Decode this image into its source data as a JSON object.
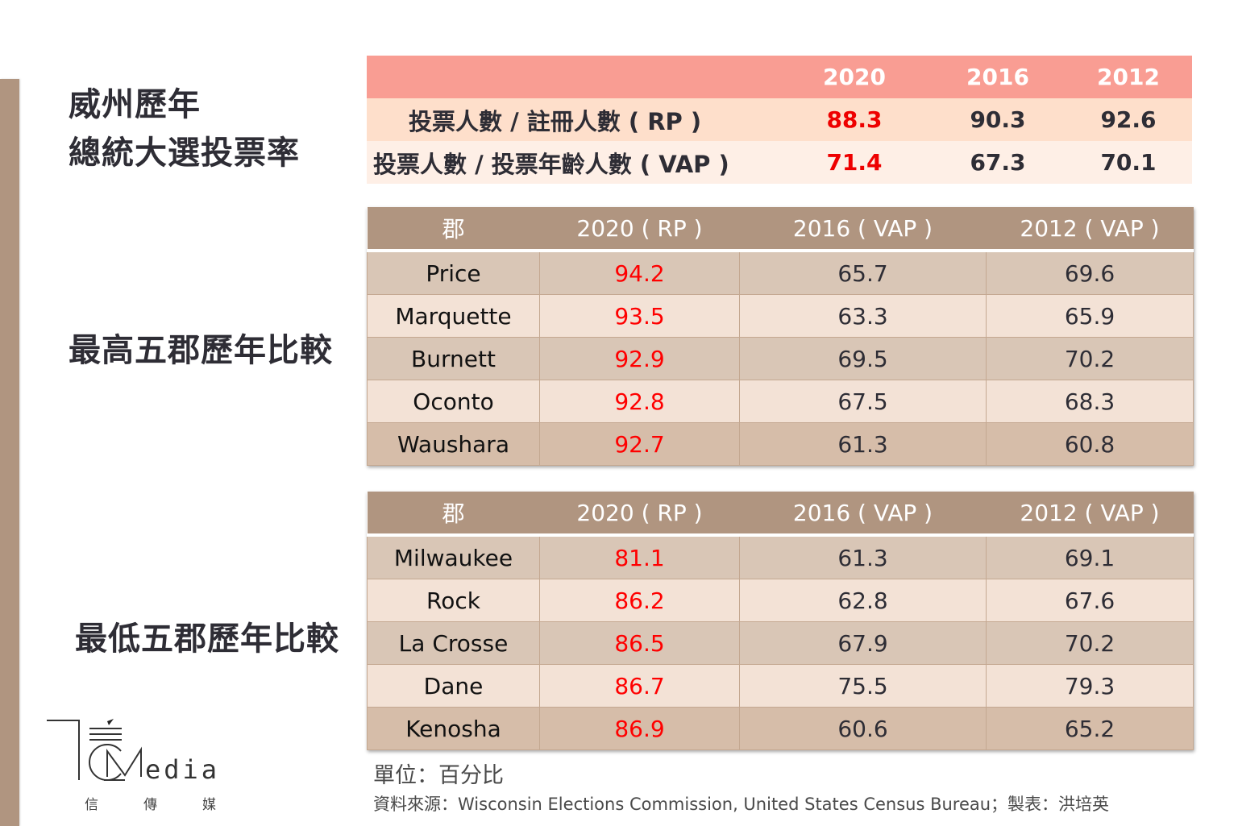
{
  "titles": {
    "main_line1": "威州歷年",
    "main_line2": "總統大選投票率",
    "top5": "最高五郡歷年比較",
    "low5": "最低五郡歷年比較"
  },
  "summary_table": {
    "headers": [
      "",
      "2020",
      "2016",
      "2012"
    ],
    "rows": [
      {
        "label": "投票人數 / 註冊人數 ( RP )",
        "values": [
          "88.3",
          "90.3",
          "92.6"
        ]
      },
      {
        "label": "投票人數 / 投票年齡人數 ( VAP )",
        "values": [
          "71.4",
          "67.3",
          "70.1"
        ]
      }
    ]
  },
  "top5_table": {
    "headers": [
      "郡",
      "2020 ( RP )",
      "2016 ( VAP )",
      "2012 ( VAP )"
    ],
    "rows": [
      {
        "county": "Price",
        "v2020": "94.2",
        "v2016": "65.7",
        "v2012": "69.6"
      },
      {
        "county": "Marquette",
        "v2020": "93.5",
        "v2016": "63.3",
        "v2012": "65.9"
      },
      {
        "county": "Burnett",
        "v2020": "92.9",
        "v2016": "69.5",
        "v2012": "70.2"
      },
      {
        "county": "Oconto",
        "v2020": "92.8",
        "v2016": "67.5",
        "v2012": "68.3"
      },
      {
        "county": "Waushara",
        "v2020": "92.7",
        "v2016": "61.3",
        "v2012": "60.8"
      }
    ]
  },
  "low5_table": {
    "headers": [
      "郡",
      "2020 ( RP )",
      "2016 ( VAP )",
      "2012 ( VAP )"
    ],
    "rows": [
      {
        "county": "Milwaukee",
        "v2020": "81.1",
        "v2016": "61.3",
        "v2012": "69.1"
      },
      {
        "county": "Rock",
        "v2020": "86.2",
        "v2016": "62.8",
        "v2012": "67.6"
      },
      {
        "county": "La Crosse",
        "v2020": "86.5",
        "v2016": "67.9",
        "v2012": "70.2"
      },
      {
        "county": "Dane",
        "v2020": "86.7",
        "v2016": "75.5",
        "v2012": "79.3"
      },
      {
        "county": "Kenosha",
        "v2020": "86.9",
        "v2016": "60.6",
        "v2012": "65.2"
      }
    ]
  },
  "notes": {
    "unit": "單位：百分比",
    "source": "資料來源：Wisconsin Elections Commission, United States Census Bureau；製表：洪培英"
  },
  "logo": {
    "word": "edia",
    "cn": [
      "信",
      "傳",
      "媒"
    ]
  },
  "colors": {
    "side_bar": "#b09580",
    "summary_header": "#f99d93",
    "highlight_red": "#ff0000",
    "county_header": "#b09580"
  }
}
